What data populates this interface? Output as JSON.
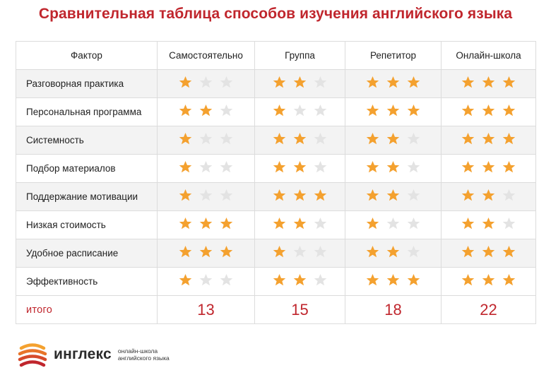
{
  "title": "Сравнительная таблица способов изучения английского языка",
  "table": {
    "factor_header": "Фактор",
    "columns": [
      "Самостоятельно",
      "Группа",
      "Репетитор",
      "Онлайн-школа"
    ],
    "rows": [
      {
        "factor": "Разговорная практика",
        "ratings": [
          1,
          2,
          3,
          3
        ]
      },
      {
        "factor": "Персональная программа",
        "ratings": [
          2,
          1,
          3,
          3
        ]
      },
      {
        "factor": "Системность",
        "ratings": [
          1,
          2,
          2,
          3
        ]
      },
      {
        "factor": "Подбор материалов",
        "ratings": [
          1,
          2,
          2,
          3
        ]
      },
      {
        "factor": "Поддержание мотивации",
        "ratings": [
          1,
          3,
          2,
          2
        ]
      },
      {
        "factor": "Низкая стоимость",
        "ratings": [
          3,
          2,
          1,
          2
        ]
      },
      {
        "factor": "Удобное расписание",
        "ratings": [
          3,
          1,
          2,
          3
        ]
      },
      {
        "factor": "Эффективность",
        "ratings": [
          1,
          2,
          3,
          3
        ]
      }
    ],
    "max_rating": 3,
    "total_label": "итого",
    "totals": [
      "13",
      "15",
      "18",
      "22"
    ]
  },
  "logo": {
    "name": "инглекс",
    "tagline_1": "онлайн-школа",
    "tagline_2": "английского языка",
    "mark_icon": "inglex-logo-stripes"
  },
  "colors": {
    "accent_red": "#c0262d",
    "star_on": "#f4a12f",
    "star_off": "#e3e3e3",
    "row_alt": "#f3f3f3"
  }
}
